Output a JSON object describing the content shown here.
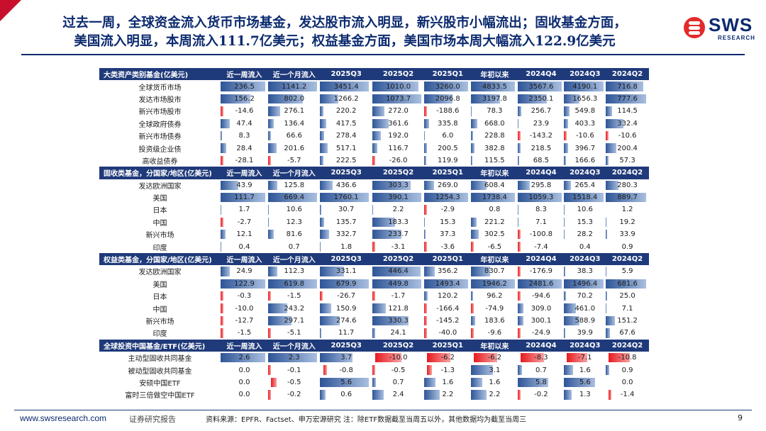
{
  "title": {
    "line1": "过去一周，全球资金流入货币市场基金，发达股市流入明显，新兴股市小幅流出；固收基金方面，",
    "line2": "美国流入明显，本周流入111.7亿美元；权益基金方面，美国市场本周大幅流入122.9亿美元"
  },
  "logo": {
    "brand": "SWS",
    "sub": "RESEARCH"
  },
  "footer": {
    "url": "www.swsresearch.com",
    "report": "证券研究报告",
    "source": "资料来源：EPFR、Factset、申万宏源研究 注：除ETF数据截至当周五以外，其他数据均为截至当周三",
    "page": "9"
  },
  "colors": {
    "header_bg": "#1f3a7a",
    "pos_bar": "#2e5597",
    "neg_bar": "#e8191f",
    "title": "#0b2a6f"
  },
  "columns": [
    "近一周流入",
    "近一个月流入",
    "2025Q3",
    "2025Q2",
    "2025Q1",
    "年初以来",
    "2024Q4",
    "2024Q3",
    "2024Q2"
  ],
  "sections": [
    {
      "header": "大类资产类别基金(亿美元)",
      "rows": [
        {
          "label": "全球货币市场",
          "values": [
            "236.5",
            "1141.2",
            "3451.4",
            "1010.0",
            "3260.0",
            "4833.5",
            "3567.6",
            "4190.1",
            "716.8"
          ]
        },
        {
          "label": "发达市场股市",
          "values": [
            "156.2",
            "802.0",
            "1266.2",
            "1073.7",
            "2096.8",
            "3197.8",
            "2350.1",
            "1656.3",
            "777.6"
          ]
        },
        {
          "label": "新兴市场股市",
          "values": [
            "-14.6",
            "276.1",
            "220.2",
            "272.0",
            "-188.6",
            "78.3",
            "256.7",
            "549.8",
            "114.5"
          ]
        },
        {
          "label": "全球政府债券",
          "values": [
            "47.4",
            "136.4",
            "417.5",
            "361.6",
            "335.8",
            "668.0",
            "23.9",
            "403.3",
            "332.4"
          ]
        },
        {
          "label": "新兴市场债券",
          "values": [
            "8.3",
            "66.6",
            "278.4",
            "192.0",
            "6.0",
            "228.8",
            "-143.2",
            "-10.6",
            "-10.6"
          ]
        },
        {
          "label": "投资级企业债",
          "values": [
            "28.4",
            "201.6",
            "517.1",
            "116.7",
            "200.5",
            "382.8",
            "218.5",
            "396.7",
            "200.4"
          ]
        },
        {
          "label": "高收益债券",
          "values": [
            "-28.1",
            "-5.7",
            "222.5",
            "-26.0",
            "119.9",
            "115.5",
            "68.5",
            "166.6",
            "57.3"
          ]
        }
      ]
    },
    {
      "header": "固收类基金，分国家/地区(亿美元)",
      "rows": [
        {
          "label": "发达欧洲国家",
          "values": [
            "43.9",
            "125.8",
            "436.6",
            "303.3",
            "269.0",
            "608.4",
            "295.8",
            "265.4",
            "280.3"
          ]
        },
        {
          "label": "美国",
          "values": [
            "111.7",
            "669.4",
            "1760.1",
            "390.1",
            "1254.3",
            "1738.4",
            "1059.3",
            "1518.4",
            "889.7"
          ]
        },
        {
          "label": "日本",
          "values": [
            "1.7",
            "10.6",
            "30.7",
            "2.2",
            "-2.9",
            "0.8",
            "8.3",
            "10.6",
            "1.2"
          ]
        },
        {
          "label": "中国",
          "values": [
            "-2.7",
            "12.3",
            "135.7",
            "183.3",
            "15.3",
            "221.2",
            "7.1",
            "15.3",
            "19.2"
          ]
        },
        {
          "label": "新兴市场",
          "values": [
            "12.1",
            "81.6",
            "332.7",
            "233.7",
            "37.3",
            "302.5",
            "-100.8",
            "28.2",
            "33.9"
          ]
        },
        {
          "label": "印度",
          "values": [
            "0.4",
            "0.7",
            "1.8",
            "-3.1",
            "-3.6",
            "-6.5",
            "-7.4",
            "0.4",
            "0.9"
          ]
        }
      ]
    },
    {
      "header": "权益类基金，分国家/地区(亿美元)",
      "rows": [
        {
          "label": "发达欧洲国家",
          "values": [
            "24.9",
            "112.3",
            "331.1",
            "446.4",
            "356.2",
            "830.7",
            "-176.9",
            "38.3",
            "5.9"
          ]
        },
        {
          "label": "美国",
          "values": [
            "122.9",
            "619.8",
            "679.9",
            "449.8",
            "1493.4",
            "1946.2",
            "2481.6",
            "1496.4",
            "681.6"
          ]
        },
        {
          "label": "日本",
          "values": [
            "-0.3",
            "-1.5",
            "-26.7",
            "-1.7",
            "120.2",
            "96.2",
            "-94.6",
            "70.2",
            "25.0"
          ]
        },
        {
          "label": "中国",
          "values": [
            "-10.0",
            "243.2",
            "150.9",
            "121.8",
            "-166.4",
            "-74.9",
            "309.0",
            "461.0",
            "7.1"
          ]
        },
        {
          "label": "新兴市场",
          "values": [
            "-12.7",
            "297.1",
            "274.6",
            "330.3",
            "-145.2",
            "183.6",
            "300.1",
            "588.9",
            "151.2"
          ]
        },
        {
          "label": "印度",
          "values": [
            "-1.5",
            "-5.1",
            "11.7",
            "24.1",
            "-40.0",
            "-9.6",
            "-24.9",
            "39.9",
            "67.6"
          ]
        }
      ]
    },
    {
      "header": "全球投资中国基金/ETF(亿美元)",
      "rows": [
        {
          "label": "主动型固收共同基金",
          "values": [
            "2.6",
            "2.3",
            "3.7",
            "-10.0",
            "-6.2",
            "-6.2",
            "-8.3",
            "-7.1",
            "-10.8"
          ]
        },
        {
          "label": "被动型固收共同基金",
          "values": [
            "0.0",
            "-0.1",
            "-0.8",
            "-0.5",
            "-1.3",
            "3.1",
            "0.7",
            "1.6",
            "0.9"
          ]
        },
        {
          "label": "安硕中国ETF",
          "values": [
            "0.0",
            "-0.5",
            "5.6",
            "0.7",
            "1.6",
            "1.6",
            "5.8",
            "5.6",
            "0.0"
          ]
        },
        {
          "label": "富时三倍做空中国ETF",
          "values": [
            "0.0",
            "-0.2",
            "0.6",
            "2.4",
            "2.2",
            "2.2",
            "-0.2",
            "1.3",
            "-1.4"
          ]
        }
      ]
    }
  ]
}
